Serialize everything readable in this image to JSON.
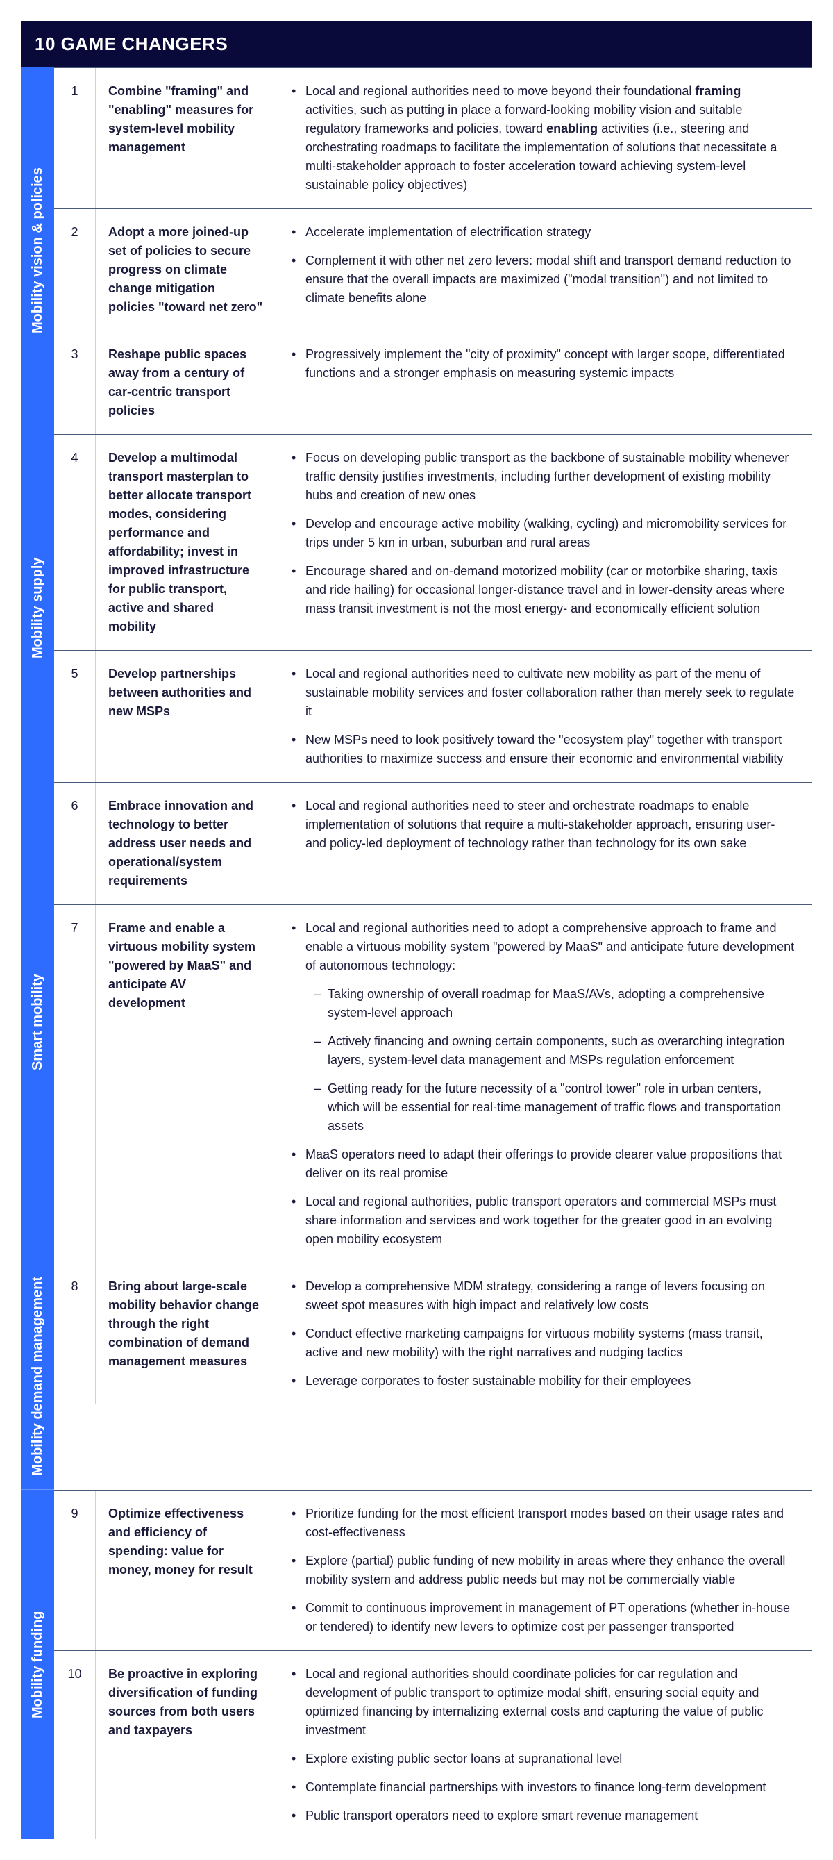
{
  "header": "10 GAME CHANGERS",
  "colors": {
    "header_bg": "#0a0a3a",
    "category_bg": "#2e6bff",
    "text": "#1a1a3a",
    "border_dark": "#4a5a7a",
    "border_light": "#cfcfdf"
  },
  "sections": [
    {
      "category": "Mobility vision & policies",
      "rows": [
        {
          "num": "1",
          "title": "Combine \"framing\" and \"enabling\" measures for system-level mobility management",
          "bullets": [
            {
              "html": "Local and regional authorities need to move beyond their foundational <b>framing</b> activities, such as putting in place a forward-looking mobility vision and suitable regulatory frameworks and policies, toward <b>enabling</b> activities (i.e., steering and orchestrating roadmaps to facilitate the implementation of solutions that necessitate a multi-stakeholder approach to foster acceleration toward achieving system-level sustainable policy objectives)"
            }
          ]
        },
        {
          "num": "2",
          "title": "Adopt a more joined-up set of policies to secure progress on climate change mitigation policies \"toward net zero\"",
          "bullets": [
            {
              "text": "Accelerate implementation of electrification strategy"
            },
            {
              "text": "Complement it with other net zero levers: modal shift and transport demand reduction to ensure that the overall impacts are maximized (\"modal transition\") and not limited to climate benefits alone"
            }
          ]
        },
        {
          "num": "3",
          "title": "Reshape public spaces away from a century of car-centric transport policies",
          "bullets": [
            {
              "text": "Progressively implement the \"city of proximity\" concept with larger scope, differentiated functions and a stronger emphasis on measuring systemic impacts"
            }
          ]
        }
      ]
    },
    {
      "category": "Mobility supply",
      "rows": [
        {
          "num": "4",
          "title": "Develop a multimodal transport masterplan to better allocate transport modes, considering performance and affordability; invest in improved infrastructure for public transport, active and shared mobility",
          "bullets": [
            {
              "text": "Focus on developing public transport as the backbone of sustainable mobility whenever traffic density justifies investments, including further development of existing mobility hubs and creation of new ones"
            },
            {
              "text": "Develop and encourage active mobility (walking, cycling) and micromobility services for trips under 5 km in urban, suburban and rural areas"
            },
            {
              "text": "Encourage shared and on-demand motorized mobility (car or motorbike sharing, taxis and ride hailing) for occasional longer-distance travel and in lower-density areas where mass transit investment is not the most energy- and economically efficient solution"
            }
          ]
        },
        {
          "num": "5",
          "title": "Develop partnerships between authorities and new MSPs",
          "bullets": [
            {
              "text": "Local and regional authorities need to cultivate new mobility as part of the menu of sustainable mobility services and foster collaboration rather than merely seek to regulate it"
            },
            {
              "text": "New MSPs need to look positively toward the \"ecosystem play\" together with transport authorities to maximize success and ensure their economic and environmental viability"
            }
          ]
        }
      ]
    },
    {
      "category": "Smart mobility",
      "rows": [
        {
          "num": "6",
          "title": "Embrace innovation and technology to better address user needs and operational/system requirements",
          "bullets": [
            {
              "text": "Local and regional authorities need to steer and orchestrate roadmaps to enable implementation of solutions that require a multi-stakeholder approach, ensuring user- and policy-led deployment of technology rather than technology for its own sake"
            }
          ]
        },
        {
          "num": "7",
          "title": "Frame and enable a virtuous mobility system \"powered by MaaS\" and anticipate AV development",
          "bullets": [
            {
              "text": "Local and regional authorities need to adopt a comprehensive approach to frame and enable a virtuous mobility system \"powered by MaaS\" and anticipate future development of autonomous technology:",
              "sub": [
                "Taking ownership of overall roadmap for MaaS/AVs, adopting a comprehensive system-level approach",
                "Actively financing and owning certain components, such as overarching integration layers, system-level data management and MSPs regulation enforcement",
                "Getting ready for the future necessity of a \"control tower\" role in urban centers, which will be essential for real-time management of traffic flows and transportation assets"
              ]
            },
            {
              "text": "MaaS operators need to adapt their offerings to provide clearer value propositions that deliver on its real promise"
            },
            {
              "text": "Local and regional authorities, public transport operators and commercial MSPs must share information and services and work together for the greater good in an evolving open mobility ecosystem"
            }
          ]
        }
      ]
    },
    {
      "category": "Mobility demand management",
      "rows": [
        {
          "num": "8",
          "title": "Bring about large-scale mobility behavior change through the right combination of demand management measures",
          "bullets": [
            {
              "text": "Develop a comprehensive MDM strategy, considering a range of levers focusing on sweet spot measures with high impact and relatively low costs"
            },
            {
              "text": "Conduct effective marketing campaigns for virtuous mobility systems (mass transit, active and new mobility) with the right narratives and nudging tactics"
            },
            {
              "text": "Leverage corporates to foster sustainable mobility for their employees"
            }
          ]
        }
      ]
    },
    {
      "category": "Mobility funding",
      "rows": [
        {
          "num": "9",
          "title": "Optimize effectiveness and efficiency of spending: value for money, money for result",
          "bullets": [
            {
              "text": "Prioritize funding for the most efficient transport modes based on their usage rates and cost-effectiveness"
            },
            {
              "text": "Explore (partial) public funding of new mobility in areas where they enhance the overall mobility system and address public needs but may not be commercially viable"
            },
            {
              "text": "Commit to continuous improvement in management of PT operations (whether in-house or tendered) to identify new levers to optimize cost per passenger transported"
            }
          ]
        },
        {
          "num": "10",
          "title": "Be proactive in exploring diversification of funding sources from both users and taxpayers",
          "bullets": [
            {
              "text": "Local and regional authorities should coordinate policies for car regulation and development of public transport to optimize modal shift, ensuring social equity and optimized financing by internalizing external costs and capturing the value of public investment"
            },
            {
              "text": "Explore existing public sector loans at supranational level"
            },
            {
              "text": "Contemplate financial partnerships with investors to finance long-term development"
            },
            {
              "text": "Public transport operators need to explore smart revenue management"
            }
          ]
        }
      ]
    }
  ]
}
